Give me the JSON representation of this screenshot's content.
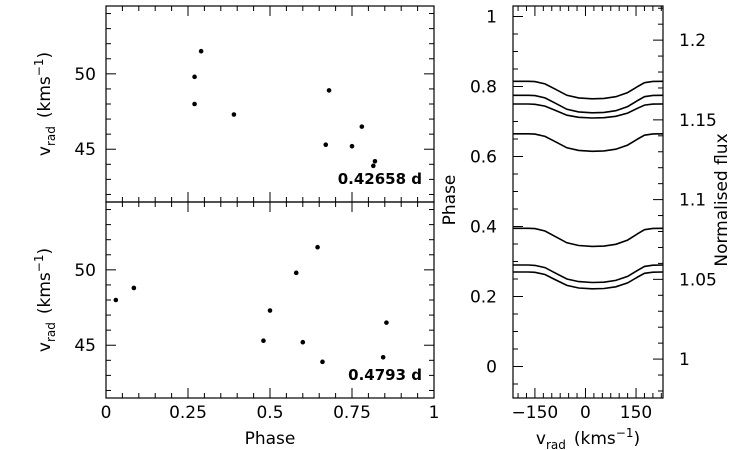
{
  "chart_data": [
    {
      "type": "scatter",
      "panel": "top-left",
      "annotation": "0.42658 d",
      "xlabel": "",
      "ylabel_main": "v",
      "ylabel_sub": "rad",
      "ylabel_units": "(kms",
      "ylabel_exp": "−1",
      "ylabel_close": ")",
      "xlim": [
        0,
        1
      ],
      "ylim": [
        41.5,
        54.5
      ],
      "yticks": [
        45,
        50
      ],
      "ytick_labels": [
        "45",
        "50"
      ],
      "x": [
        0.27,
        0.29,
        0.27,
        0.39,
        0.68,
        0.67,
        0.78,
        0.75,
        0.82,
        0.815
      ],
      "y": [
        49.8,
        51.5,
        48.0,
        47.3,
        48.9,
        45.3,
        46.5,
        45.2,
        44.2,
        43.9
      ]
    },
    {
      "type": "scatter",
      "panel": "bottom-left",
      "annotation": "0.4793 d",
      "xlabel": "Phase",
      "ylabel_main": "v",
      "ylabel_sub": "rad",
      "ylabel_units": "(kms",
      "ylabel_exp": "−1",
      "ylabel_close": ")",
      "xlim": [
        0,
        1
      ],
      "ylim": [
        41.5,
        54.5
      ],
      "xticks": [
        0,
        0.25,
        0.5,
        0.75,
        1
      ],
      "xtick_labels": [
        "0",
        "0.25",
        "0.5",
        "0.75",
        "1"
      ],
      "yticks": [
        45,
        50
      ],
      "ytick_labels": [
        "45",
        "50"
      ],
      "x": [
        0.03,
        0.085,
        0.5,
        0.48,
        0.58,
        0.645,
        0.6,
        0.66,
        0.855,
        0.845
      ],
      "y": [
        48.0,
        48.8,
        47.3,
        45.3,
        49.8,
        51.5,
        45.2,
        43.9,
        46.5,
        44.2
      ]
    },
    {
      "type": "line",
      "panel": "right",
      "xlabel_main": "v",
      "xlabel_sub": "rad",
      "xlabel_units": "(kms",
      "xlabel_exp": "−1",
      "xlabel_close": ")",
      "ylabel_left": "Phase",
      "ylabel_right": "Normalised flux",
      "xlim": [
        -215,
        230
      ],
      "ylim_phase": [
        -0.09,
        1.03
      ],
      "ylim_flux": [
        0.9756,
        1.2214
      ],
      "xticks": [
        -150,
        0,
        150
      ],
      "xtick_labels": [
        "−150",
        "0",
        "150"
      ],
      "yticks_left": [
        0,
        0.2,
        0.4,
        0.6,
        0.8,
        1
      ],
      "ytick_labels_left": [
        "0",
        "0.2",
        "0.4",
        "0.6",
        "0.8",
        "1"
      ],
      "yticks_right": [
        1,
        1.05,
        1.1,
        1.15,
        1.2
      ],
      "ytick_labels_right": [
        "1",
        "1.05",
        "1.1",
        "1.15",
        "1.2"
      ],
      "profile_velocity": [
        -215,
        -170,
        -150,
        -120,
        -90,
        -55,
        -20,
        20,
        55,
        90,
        125,
        155,
        175,
        200,
        230
      ],
      "profile_depth": [
        0,
        0,
        0.02,
        0.15,
        0.45,
        0.8,
        0.95,
        1.0,
        0.98,
        0.88,
        0.65,
        0.3,
        0.08,
        0.01,
        0
      ],
      "series": [
        {
          "phase": 0.27,
          "continuum": 0.27,
          "depth": 0.048
        },
        {
          "phase": 0.29,
          "continuum": 0.29,
          "depth": 0.05
        },
        {
          "phase": 0.39,
          "continuum": 0.395,
          "depth": 0.052
        },
        {
          "phase": 0.66,
          "continuum": 0.665,
          "depth": 0.05
        },
        {
          "phase": 0.75,
          "continuum": 0.75,
          "depth": 0.04
        },
        {
          "phase": 0.78,
          "continuum": 0.775,
          "depth": 0.05
        },
        {
          "phase": 0.82,
          "continuum": 0.815,
          "depth": 0.05
        }
      ]
    }
  ]
}
